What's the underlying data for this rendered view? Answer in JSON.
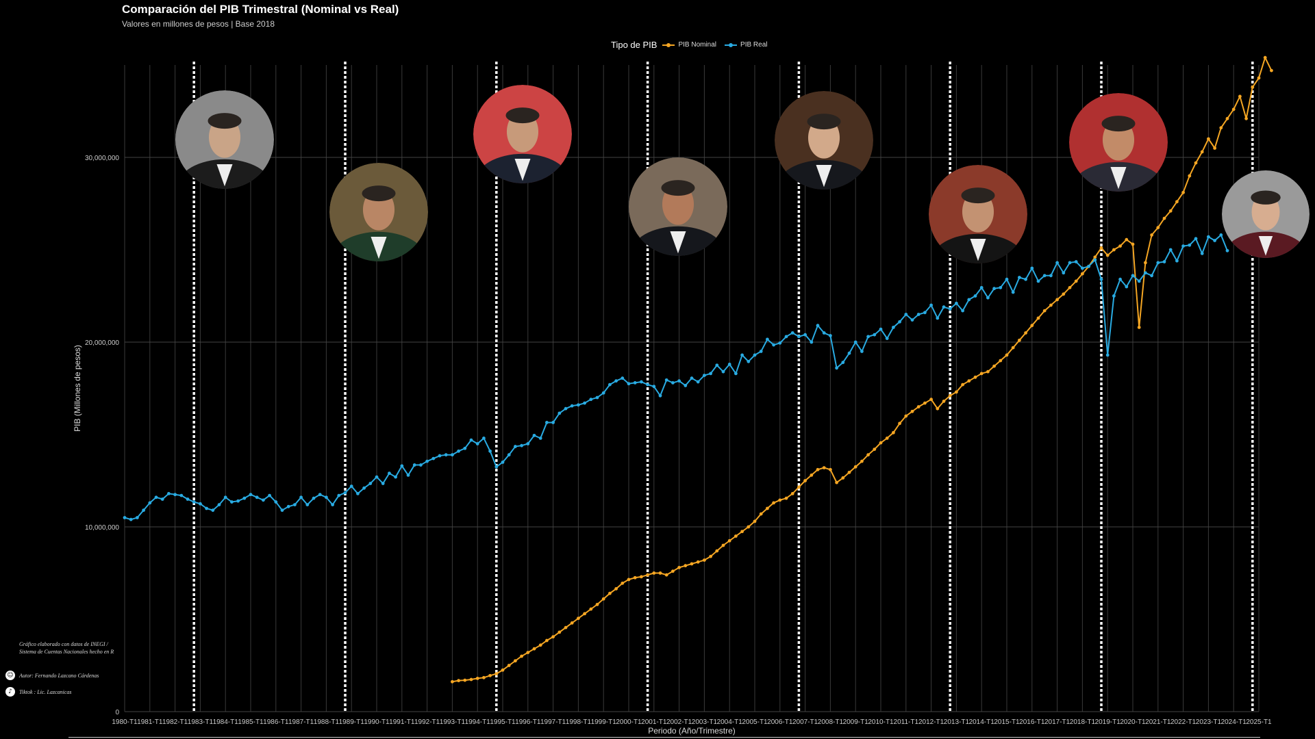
{
  "chart_data": {
    "type": "line",
    "title": "Comparación del PIB Trimestral (Nominal vs Real)",
    "subtitle": "Valores en millones de pesos | Base 2018",
    "xlabel": "Periodo (Año/Trimestre)",
    "ylabel": "PIB (Millones de pesos)",
    "legend_title": "Tipo de PIB",
    "legend_position": "top",
    "ylim": [
      0,
      35000000
    ],
    "y_ticks": [
      0,
      10000000,
      20000000,
      30000000
    ],
    "y_tick_labels": [
      "0",
      "10,000,000",
      "20,000,000",
      "30,000,000"
    ],
    "x_tick_labels": [
      "1980-T1",
      "1981-T1",
      "1982-T1",
      "1983-T1",
      "1984-T1",
      "1985-T1",
      "1986-T1",
      "1987-T1",
      "1988-T1",
      "1989-T1",
      "1990-T1",
      "1991-T1",
      "1992-T1",
      "1993-T1",
      "1994-T1",
      "1995-T1",
      "1996-T1",
      "1997-T1",
      "1998-T1",
      "1999-T1",
      "2000-T1",
      "2001-T1",
      "2002-T1",
      "2003-T1",
      "2004-T1",
      "2005-T1",
      "2006-T1",
      "2007-T1",
      "2008-T1",
      "2009-T1",
      "2010-T1",
      "2011-T1",
      "2012-T1",
      "2013-T1",
      "2014-T1",
      "2015-T1",
      "2016-T1",
      "2017-T1",
      "2018-T1",
      "2019-T1",
      "2020-T1",
      "2021-T1",
      "2022-T1",
      "2023-T1",
      "2024-T1",
      "2025-T1"
    ],
    "grid": true,
    "period_markers": [
      "1982-T4",
      "1988-T4",
      "1994-T4",
      "2000-T4",
      "2006-T4",
      "2012-T4",
      "2018-T4",
      "2024-T4"
    ],
    "series": [
      {
        "name": "PIB Nominal",
        "color": "#f5a623",
        "start": "1993-T1",
        "values": [
          1620000,
          1680000,
          1700000,
          1740000,
          1800000,
          1840000,
          1950000,
          2050000,
          2250000,
          2500000,
          2750000,
          3000000,
          3200000,
          3400000,
          3600000,
          3850000,
          4050000,
          4300000,
          4550000,
          4800000,
          5050000,
          5300000,
          5550000,
          5800000,
          6100000,
          6400000,
          6650000,
          6950000,
          7150000,
          7250000,
          7300000,
          7400000,
          7500000,
          7500000,
          7400000,
          7600000,
          7800000,
          7900000,
          8000000,
          8100000,
          8200000,
          8400000,
          8700000,
          9000000,
          9250000,
          9500000,
          9750000,
          10000000,
          10300000,
          10700000,
          11000000,
          11300000,
          11450000,
          11550000,
          11800000,
          12150000,
          12500000,
          12800000,
          13100000,
          13200000,
          13100000,
          12400000,
          12650000,
          12950000,
          13250000,
          13550000,
          13900000,
          14200000,
          14550000,
          14800000,
          15100000,
          15600000,
          16000000,
          16250000,
          16500000,
          16700000,
          16900000,
          16400000,
          16800000,
          17100000,
          17300000,
          17700000,
          17900000,
          18100000,
          18300000,
          18400000,
          18700000,
          19000000,
          19300000,
          19700000,
          20100000,
          20500000,
          20900000,
          21300000,
          21700000,
          22000000,
          22300000,
          22600000,
          22950000,
          23300000,
          23700000,
          24100000,
          24600000,
          25100000,
          24700000,
          25000000,
          25200000,
          25550000,
          25300000,
          20800000,
          24300000,
          25800000,
          26200000,
          26700000,
          27100000,
          27600000,
          28100000,
          29000000,
          29700000,
          30300000,
          31000000,
          30500000,
          31600000,
          32100000,
          32600000,
          33300000,
          32100000,
          33800000,
          34300000,
          35400000,
          34700000
        ]
      },
      {
        "name": "PIB Real",
        "color": "#29abe2",
        "start": "1980-T1",
        "values": [
          10500000,
          10400000,
          10500000,
          10900000,
          11300000,
          11600000,
          11500000,
          11800000,
          11750000,
          11700000,
          11500000,
          11350000,
          11250000,
          11000000,
          10900000,
          11200000,
          11600000,
          11350000,
          11400000,
          11550000,
          11750000,
          11600000,
          11450000,
          11700000,
          11350000,
          10900000,
          11100000,
          11200000,
          11600000,
          11200000,
          11550000,
          11750000,
          11600000,
          11200000,
          11700000,
          11850000,
          12200000,
          11800000,
          12100000,
          12350000,
          12700000,
          12350000,
          12900000,
          12700000,
          13300000,
          12800000,
          13350000,
          13350000,
          13550000,
          13700000,
          13850000,
          13900000,
          13900000,
          14100000,
          14250000,
          14700000,
          14500000,
          14800000,
          14100000,
          13250000,
          13500000,
          13900000,
          14350000,
          14400000,
          14500000,
          14950000,
          14800000,
          15650000,
          15650000,
          16150000,
          16400000,
          16550000,
          16600000,
          16700000,
          16900000,
          17000000,
          17250000,
          17700000,
          17900000,
          18050000,
          17750000,
          17800000,
          17850000,
          17700000,
          17600000,
          17100000,
          17950000,
          17800000,
          17900000,
          17650000,
          18050000,
          17850000,
          18200000,
          18300000,
          18750000,
          18400000,
          18800000,
          18300000,
          19300000,
          18950000,
          19300000,
          19500000,
          20150000,
          19850000,
          19950000,
          20300000,
          20500000,
          20300000,
          20400000,
          20000000,
          20900000,
          20500000,
          20350000,
          18600000,
          18900000,
          19400000,
          20000000,
          19500000,
          20300000,
          20400000,
          20700000,
          20200000,
          20800000,
          21100000,
          21500000,
          21200000,
          21500000,
          21600000,
          22000000,
          21300000,
          21900000,
          21800000,
          22100000,
          21700000,
          22300000,
          22500000,
          22950000,
          22400000,
          22900000,
          22950000,
          23400000,
          22700000,
          23500000,
          23400000,
          24000000,
          23300000,
          23600000,
          23600000,
          24300000,
          23750000,
          24300000,
          24350000,
          24000000,
          24100000,
          24450000,
          23400000,
          19300000,
          22500000,
          23400000,
          23000000,
          23600000,
          23300000,
          23750000,
          23600000,
          24300000,
          24350000,
          25000000,
          24400000,
          25200000,
          25250000,
          25600000,
          24800000,
          25700000,
          25500000,
          25800000,
          24950000
        ]
      }
    ]
  },
  "president_photos": [
    {
      "name": "portrait-1-icon"
    },
    {
      "name": "portrait-2-icon"
    },
    {
      "name": "portrait-3-icon"
    },
    {
      "name": "portrait-4-icon"
    },
    {
      "name": "portrait-5-icon"
    },
    {
      "name": "portrait-6-icon"
    },
    {
      "name": "portrait-7-icon"
    },
    {
      "name": "portrait-8-icon"
    }
  ],
  "footer": {
    "caption": "Gráfico elaborado con datos de INEGI / Sistema de Cuentas Nacionales hecho en R",
    "author": "Autor:  Fernando Lazcano Cárdenas",
    "tiktok": "Tiktok : Lic. Lazcanicas"
  }
}
